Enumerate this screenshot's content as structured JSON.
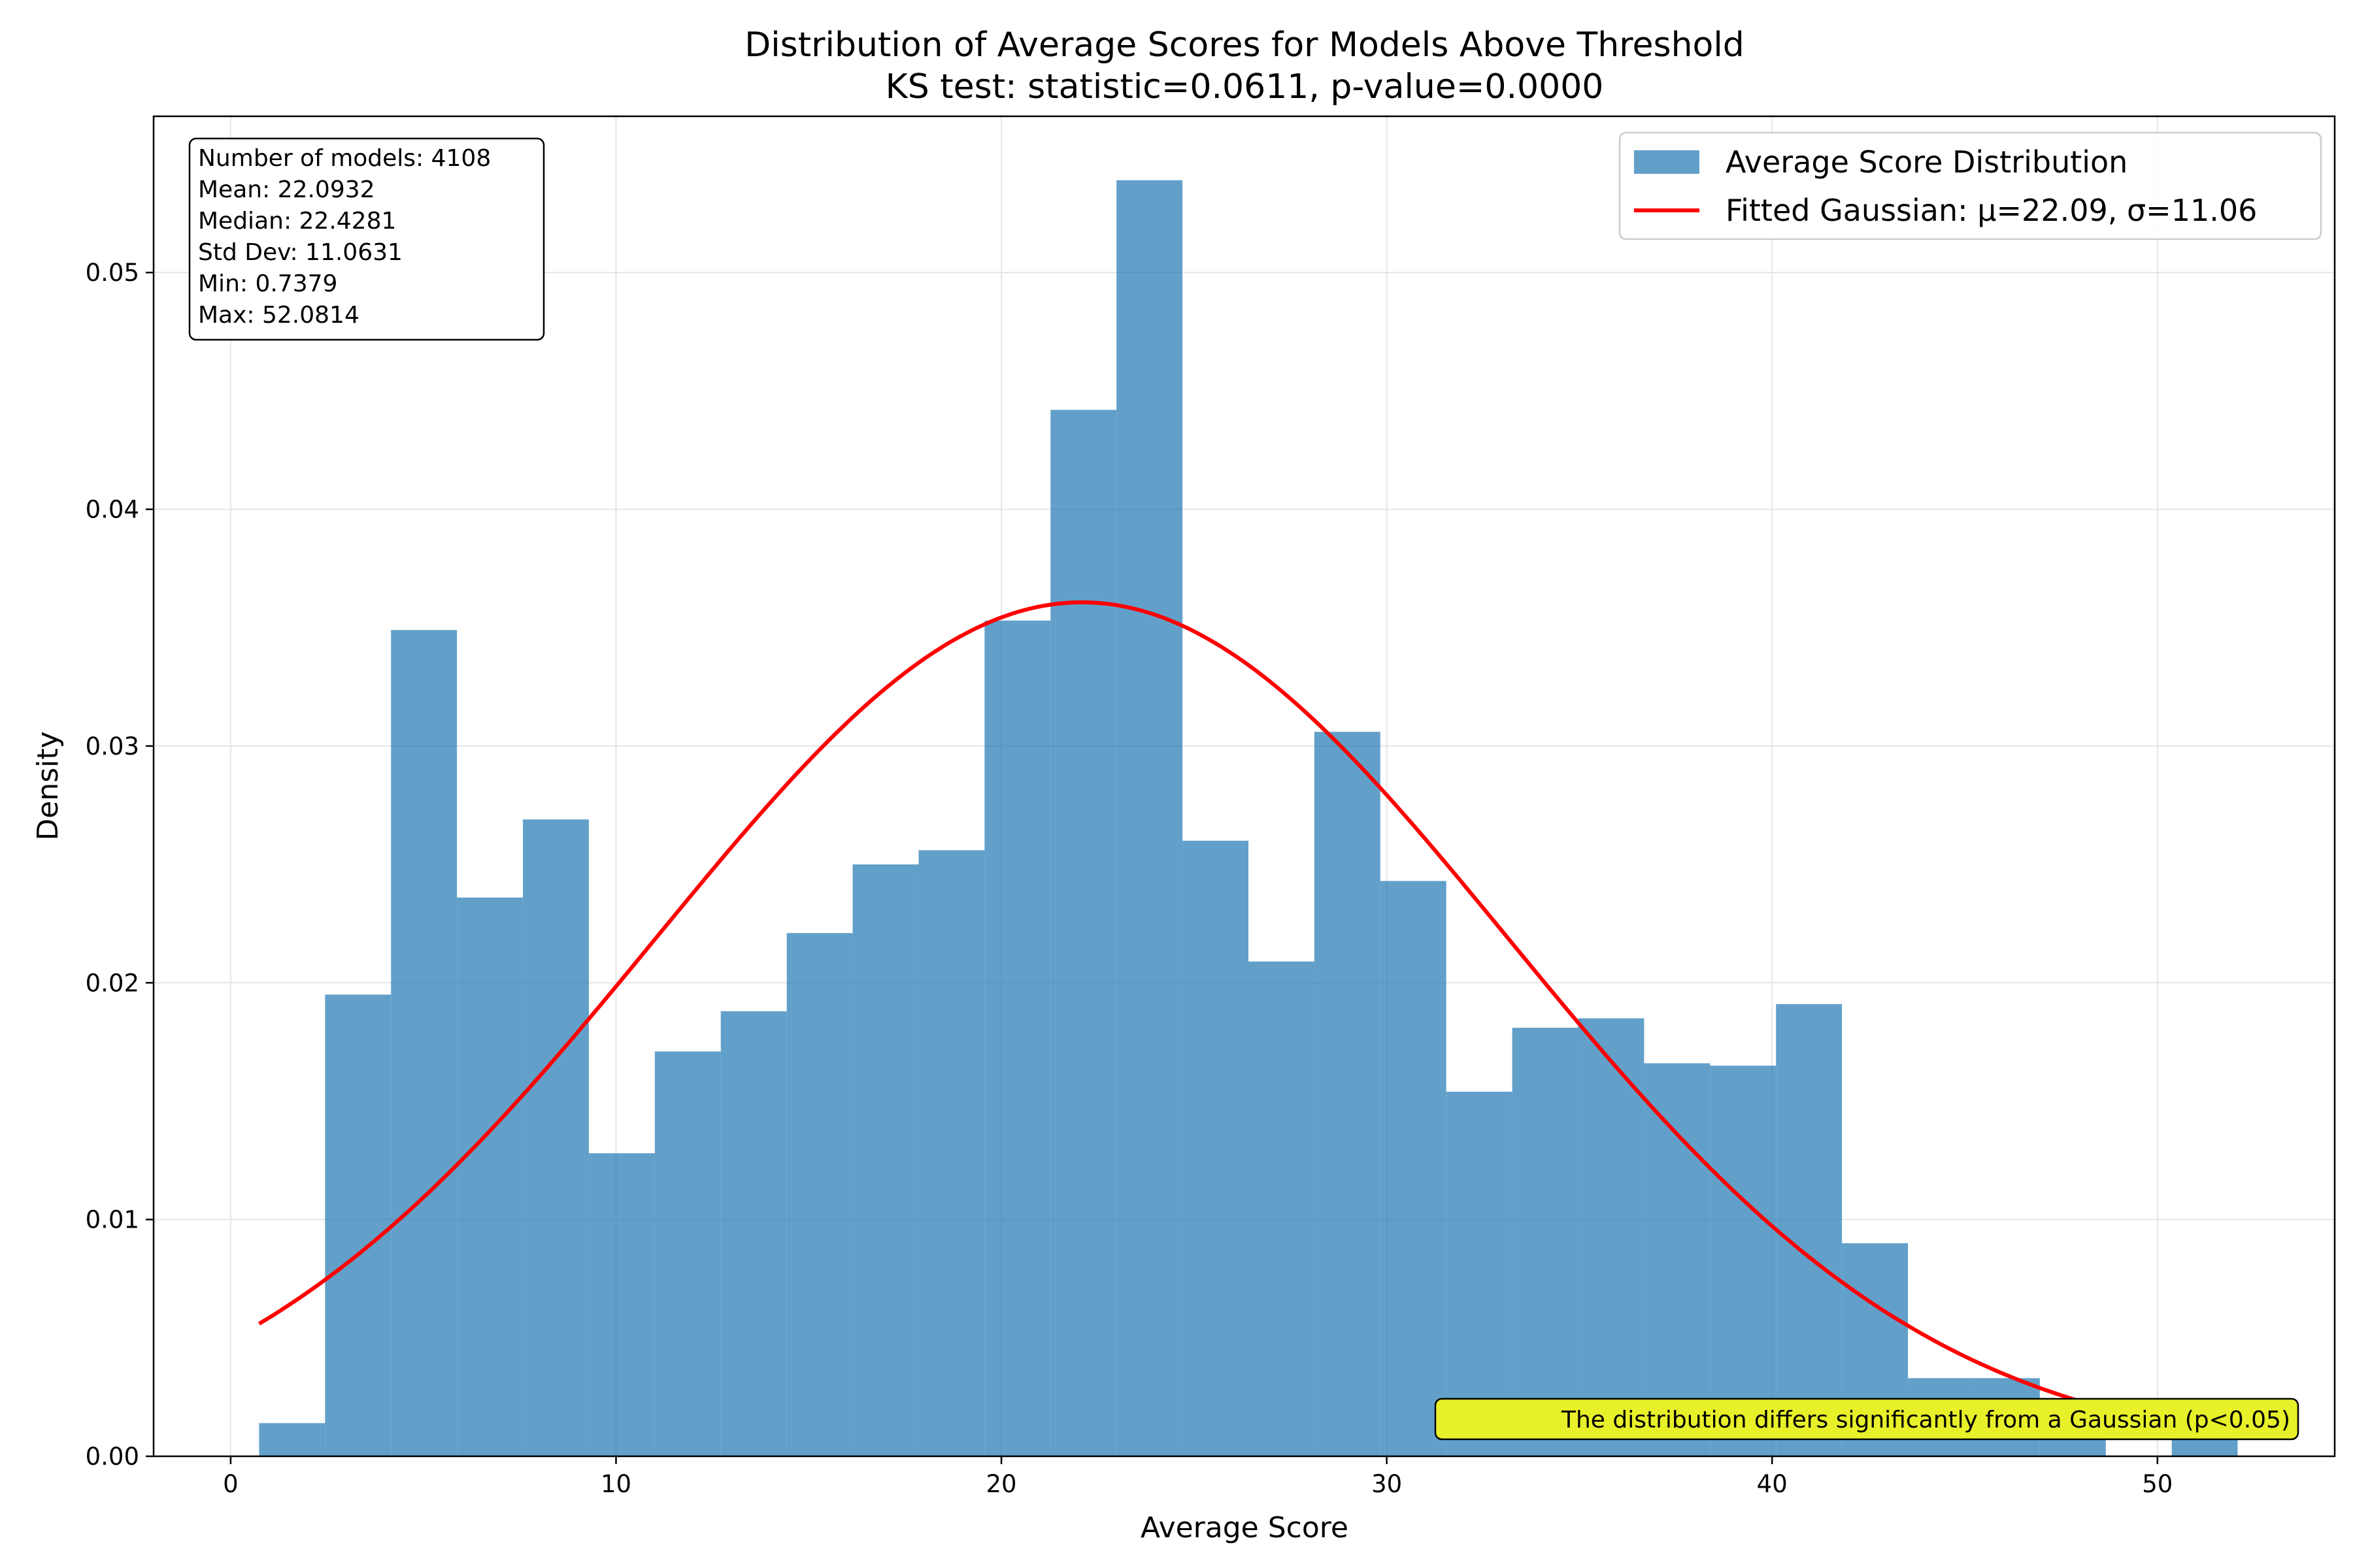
{
  "chart_data": {
    "type": "bar",
    "title": "Distribution of Average Scores for Models Above Threshold",
    "subtitle": "KS test: statistic=0.0611, p-value=0.0000",
    "xlabel": "Average Score",
    "ylabel": "Density",
    "xlim": [
      -2.0,
      54.6
    ],
    "ylim": [
      0,
      0.0566
    ],
    "xticks": [
      0,
      10,
      20,
      30,
      40,
      50
    ],
    "yticks": [
      0.0,
      0.01,
      0.02,
      0.03,
      0.04,
      0.05
    ],
    "xtick_labels": [
      "0",
      "10",
      "20",
      "30",
      "40",
      "50"
    ],
    "ytick_labels": [
      "0.00",
      "0.01",
      "0.02",
      "0.03",
      "0.04",
      "0.05"
    ],
    "grid": true,
    "legend_position": "top-right",
    "histogram": {
      "name": "Average Score Distribution",
      "color": "#1f77b4",
      "bin_edges": [
        0.7379,
        2.4494,
        4.1609,
        5.8724,
        7.5838,
        9.2953,
        11.0068,
        12.7183,
        14.4298,
        16.1413,
        17.8528,
        19.5642,
        21.2757,
        22.9872,
        24.6987,
        26.4102,
        28.1217,
        29.8332,
        31.5446,
        33.2561,
        34.9676,
        36.6791,
        38.3906,
        40.1021,
        41.8136,
        43.525,
        45.2365,
        46.948,
        48.6595,
        50.371,
        52.0814
      ],
      "density": [
        0.0014,
        0.0195,
        0.0349,
        0.0236,
        0.0269,
        0.0128,
        0.0171,
        0.0188,
        0.0221,
        0.025,
        0.0256,
        0.0353,
        0.0442,
        0.0539,
        0.026,
        0.0209,
        0.0306,
        0.0243,
        0.0154,
        0.0181,
        0.0185,
        0.0166,
        0.0165,
        0.0191,
        0.009,
        0.0033,
        0.0033,
        0.0015,
        0.0,
        0.0016
      ]
    },
    "series": [
      {
        "name": "Fitted Gaussian: μ=22.09, σ=11.06",
        "type": "line",
        "color": "#ff0000",
        "mu": 22.09,
        "sigma": 11.06,
        "x_range": [
          0.7379,
          52.0814
        ]
      }
    ],
    "annotations": {
      "stats_box": [
        "Number of models: 4108",
        "Mean: 22.0932",
        "Median: 22.4281",
        "Std Dev: 11.0631",
        "Min: 0.7379",
        "Max: 52.0814"
      ],
      "note": "The distribution differs significantly from a Gaussian (p<0.05)",
      "note_background": "#e8f02a"
    }
  }
}
